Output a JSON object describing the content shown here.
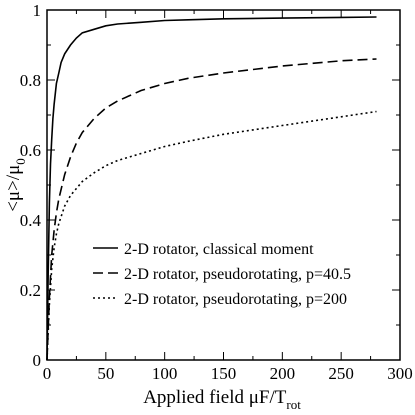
{
  "chart_data": {
    "type": "line",
    "title": "",
    "xlabel": {
      "main": "Applied field  μF/T",
      "sub": "rot"
    },
    "ylabel": {
      "main": "<μ>/μ",
      "sub": "0"
    },
    "xlim": [
      0,
      300
    ],
    "ylim": [
      0,
      1
    ],
    "x_ticks": [
      "0",
      "50",
      "100",
      "150",
      "200",
      "250",
      "300"
    ],
    "y_ticks": [
      "0",
      "0.2",
      "0.4",
      "0.6",
      "0.8",
      "1"
    ],
    "grid": false,
    "legend_position": "lower-center",
    "series": [
      {
        "name": "2-D rotator, classical moment",
        "style": "solid",
        "x": [
          0,
          1,
          2,
          3,
          4,
          5,
          6,
          8,
          10,
          12,
          15,
          20,
          25,
          30,
          40,
          50,
          60,
          80,
          100,
          120,
          150,
          200,
          250,
          280
        ],
        "y": [
          0,
          0.25,
          0.45,
          0.56,
          0.63,
          0.69,
          0.73,
          0.79,
          0.82,
          0.85,
          0.875,
          0.9,
          0.92,
          0.935,
          0.945,
          0.955,
          0.96,
          0.965,
          0.97,
          0.972,
          0.975,
          0.977,
          0.979,
          0.98
        ]
      },
      {
        "name": "2-D rotator, pseudorotating, p=40.5",
        "style": "dashed",
        "x": [
          0,
          2,
          4,
          6,
          8,
          10,
          15,
          20,
          25,
          30,
          40,
          50,
          60,
          80,
          100,
          120,
          150,
          200,
          250,
          280
        ],
        "y": [
          0,
          0.18,
          0.3,
          0.37,
          0.42,
          0.46,
          0.53,
          0.58,
          0.62,
          0.65,
          0.69,
          0.72,
          0.74,
          0.77,
          0.79,
          0.805,
          0.82,
          0.84,
          0.855,
          0.86
        ]
      },
      {
        "name": "2-D rotator, pseudorotating, p=200",
        "style": "dotted",
        "x": [
          0,
          2,
          4,
          6,
          8,
          10,
          15,
          20,
          25,
          30,
          40,
          50,
          60,
          80,
          100,
          120,
          150,
          200,
          250,
          280
        ],
        "y": [
          0,
          0.16,
          0.26,
          0.32,
          0.36,
          0.39,
          0.44,
          0.47,
          0.49,
          0.51,
          0.535,
          0.555,
          0.57,
          0.59,
          0.61,
          0.625,
          0.645,
          0.67,
          0.695,
          0.71
        ]
      }
    ]
  }
}
